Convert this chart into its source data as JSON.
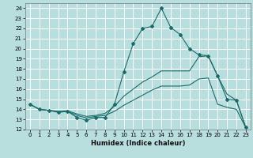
{
  "xlabel": "Humidex (Indice chaleur)",
  "background_color": "#b8dede",
  "grid_color": "#ffffff",
  "line_color": "#1a6b6b",
  "xlim": [
    -0.5,
    23.5
  ],
  "ylim": [
    12,
    24.5
  ],
  "xticks": [
    0,
    1,
    2,
    3,
    4,
    5,
    6,
    7,
    8,
    9,
    10,
    11,
    12,
    13,
    14,
    15,
    16,
    17,
    18,
    19,
    20,
    21,
    22,
    23
  ],
  "yticks": [
    12,
    13,
    14,
    15,
    16,
    17,
    18,
    19,
    20,
    21,
    22,
    23,
    24
  ],
  "line1_x": [
    0,
    1,
    2,
    3,
    4,
    5,
    6,
    7,
    8,
    9,
    10,
    11,
    12,
    13,
    14,
    15,
    16,
    17,
    18,
    19,
    20,
    21,
    22,
    23
  ],
  "line1_y": [
    14.5,
    14.0,
    13.9,
    13.7,
    13.8,
    13.2,
    12.9,
    13.2,
    13.2,
    14.5,
    17.7,
    20.5,
    22.0,
    22.2,
    24.0,
    22.1,
    21.4,
    20.0,
    19.4,
    19.3,
    17.3,
    15.0,
    14.9,
    12.2
  ],
  "line2_x": [
    0,
    1,
    2,
    3,
    4,
    5,
    6,
    7,
    8,
    9,
    10,
    11,
    12,
    13,
    14,
    15,
    16,
    17,
    18,
    19,
    20,
    21,
    22,
    23
  ],
  "line2_y": [
    14.5,
    14.0,
    13.9,
    13.8,
    13.85,
    13.55,
    13.3,
    13.4,
    13.6,
    14.3,
    15.3,
    16.0,
    16.7,
    17.2,
    17.8,
    17.8,
    17.8,
    17.8,
    19.2,
    19.3,
    17.3,
    15.5,
    14.9,
    12.2
  ],
  "line3_x": [
    0,
    1,
    2,
    3,
    4,
    5,
    6,
    7,
    8,
    9,
    10,
    11,
    12,
    13,
    14,
    15,
    16,
    17,
    18,
    19,
    20,
    21,
    22,
    23
  ],
  "line3_y": [
    14.5,
    14.0,
    13.9,
    13.75,
    13.8,
    13.4,
    13.15,
    13.3,
    13.4,
    13.8,
    14.4,
    14.9,
    15.4,
    15.9,
    16.3,
    16.3,
    16.3,
    16.4,
    17.0,
    17.1,
    14.5,
    14.2,
    14.0,
    12.2
  ]
}
